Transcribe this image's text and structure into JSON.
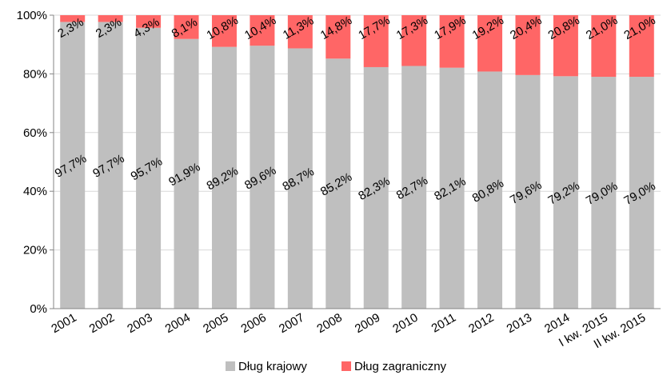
{
  "chart_data": {
    "type": "bar",
    "stacked": true,
    "categories": [
      "2001",
      "2002",
      "2003",
      "2004",
      "2005",
      "2006",
      "2007",
      "2008",
      "2009",
      "2010",
      "2011",
      "2012",
      "2013",
      "2014",
      "I kw. 2015",
      "II kw. 2015"
    ],
    "series": [
      {
        "name": "Dług krajowy",
        "color": "#bfbfbf",
        "values": [
          97.7,
          97.7,
          95.7,
          91.9,
          89.2,
          89.6,
          88.7,
          85.2,
          82.3,
          82.7,
          82.1,
          80.8,
          79.6,
          79.2,
          79.0,
          79.0
        ],
        "labels": [
          "97,7%",
          "97,7%",
          "95,7%",
          "91,9%",
          "89,2%",
          "89,6%",
          "88,7%",
          "85,2%",
          "82,3%",
          "82,7%",
          "82,1%",
          "80,8%",
          "79,6%",
          "79,2%",
          "79,0%",
          "79,0%"
        ]
      },
      {
        "name": "Dług zagraniczny",
        "color": "#ff6666",
        "values": [
          2.3,
          2.3,
          4.3,
          8.1,
          10.8,
          10.4,
          11.3,
          14.8,
          17.7,
          17.3,
          17.9,
          19.2,
          20.4,
          20.8,
          21.0,
          21.0
        ],
        "labels": [
          "2,3%",
          "2,3%",
          "4,3%",
          "8,1%",
          "10,8%",
          "10,4%",
          "11,3%",
          "14,8%",
          "17,7%",
          "17,3%",
          "17,9%",
          "19,2%",
          "20,4%",
          "20,8%",
          "21,0%",
          "21,0%"
        ]
      }
    ],
    "ylim": [
      0,
      100
    ],
    "yticks": [
      "0%",
      "20%",
      "40%",
      "60%",
      "80%",
      "100%"
    ],
    "grid": true,
    "legend_position": "bottom"
  }
}
